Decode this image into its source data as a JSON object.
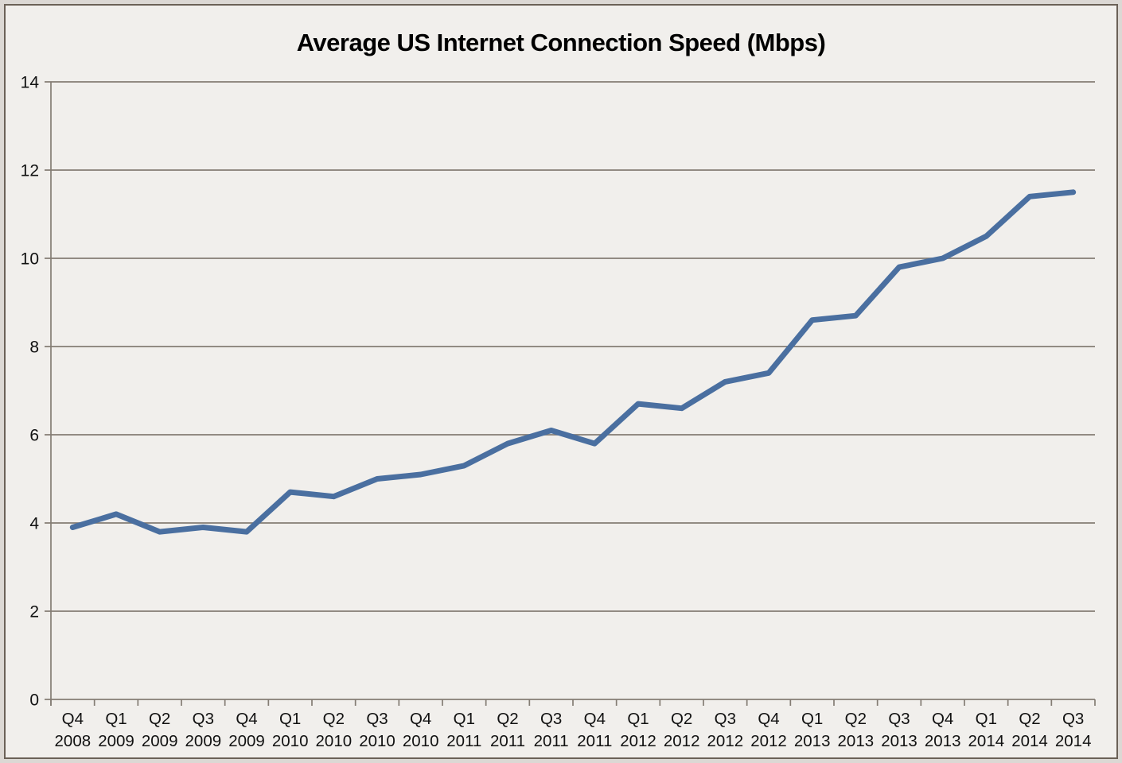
{
  "title": "Average US Internet Connection Speed (Mbps)",
  "chart_data": {
    "type": "line",
    "title": "Average US Internet Connection Speed (Mbps)",
    "categories": [
      {
        "quarter": "Q4",
        "year": "2008"
      },
      {
        "quarter": "Q1",
        "year": "2009"
      },
      {
        "quarter": "Q2",
        "year": "2009"
      },
      {
        "quarter": "Q3",
        "year": "2009"
      },
      {
        "quarter": "Q4",
        "year": "2009"
      },
      {
        "quarter": "Q1",
        "year": "2010"
      },
      {
        "quarter": "Q2",
        "year": "2010"
      },
      {
        "quarter": "Q3",
        "year": "2010"
      },
      {
        "quarter": "Q4",
        "year": "2010"
      },
      {
        "quarter": "Q1",
        "year": "2011"
      },
      {
        "quarter": "Q2",
        "year": "2011"
      },
      {
        "quarter": "Q3",
        "year": "2011"
      },
      {
        "quarter": "Q4",
        "year": "2011"
      },
      {
        "quarter": "Q1",
        "year": "2012"
      },
      {
        "quarter": "Q2",
        "year": "2012"
      },
      {
        "quarter": "Q3",
        "year": "2012"
      },
      {
        "quarter": "Q4",
        "year": "2012"
      },
      {
        "quarter": "Q1",
        "year": "2013"
      },
      {
        "quarter": "Q2",
        "year": "2013"
      },
      {
        "quarter": "Q3",
        "year": "2013"
      },
      {
        "quarter": "Q4",
        "year": "2013"
      },
      {
        "quarter": "Q1",
        "year": "2014"
      },
      {
        "quarter": "Q2",
        "year": "2014"
      },
      {
        "quarter": "Q3",
        "year": "2014"
      }
    ],
    "values": [
      3.9,
      4.2,
      3.8,
      3.9,
      3.8,
      4.7,
      4.6,
      5.0,
      5.1,
      5.3,
      5.8,
      6.1,
      5.8,
      6.7,
      6.6,
      7.2,
      7.4,
      8.6,
      8.7,
      9.8,
      10.0,
      10.5,
      11.4,
      11.5
    ],
    "ylim": [
      0,
      14
    ],
    "yticks": [
      0,
      2,
      4,
      6,
      8,
      10,
      12,
      14
    ],
    "xlabel": "",
    "ylabel": "",
    "grid": true,
    "legend": "none",
    "colors": {
      "line": "#4a6fa0",
      "grid": "#847d74",
      "axis": "#847d74",
      "background": "#f1efec",
      "frame_border": "#6b6157",
      "text": "#111111"
    }
  }
}
